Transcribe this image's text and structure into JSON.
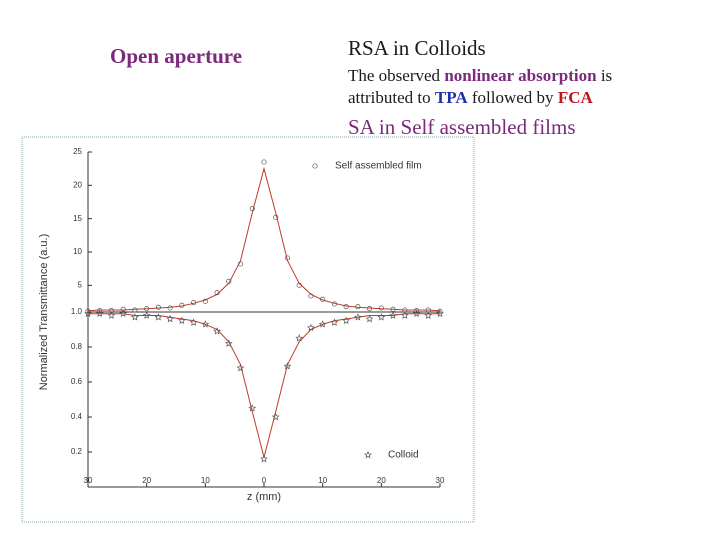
{
  "slide": {
    "left_heading": {
      "text": "Open aperture",
      "color": "#7b2a7b"
    },
    "right_heading": {
      "text": "RSA in Colloids",
      "color": "#1a1a1a"
    },
    "body": [
      {
        "text": "The observed ",
        "color": "#1a1a1a",
        "bold": false
      },
      {
        "text": "nonlinear absorption",
        "color": "#7b2a7b",
        "bold": true
      },
      {
        "text": " is attributed to ",
        "color": "#1a1a1a",
        "bold": false
      },
      {
        "text": "TPA",
        "color": "#1f2fa8",
        "bold": true
      },
      {
        "text": " followed by ",
        "color": "#1a1a1a",
        "bold": false
      },
      {
        "text": "FCA",
        "color": "#c0141e",
        "bold": true
      }
    ],
    "subheading": {
      "text": "SA in Self assembled films",
      "color": "#7b2a7b"
    }
  },
  "chart_data": {
    "type": "scatter",
    "x_label": "z (mm)",
    "y_label": "Normalized Transmittance (a.u.)",
    "x": [
      -30,
      -28,
      -26,
      -24,
      -22,
      -20,
      -18,
      -16,
      -14,
      -12,
      -10,
      -8,
      -6,
      -4,
      -2,
      0,
      2,
      4,
      6,
      8,
      10,
      12,
      14,
      16,
      18,
      20,
      22,
      24,
      26,
      28,
      30
    ],
    "xlim": [
      -30,
      30
    ],
    "xticks": [
      {
        "value": -30,
        "label": "30"
      },
      {
        "value": -20,
        "label": "20"
      },
      {
        "value": -10,
        "label": "10"
      },
      0,
      10,
      20,
      30
    ],
    "panels": [
      {
        "ylim": [
          1,
          25
        ],
        "yticks": [
          {
            "value": 1,
            "label": "1.0"
          },
          5,
          10,
          15,
          20,
          25
        ],
        "legend": "upper right",
        "series": [
          {
            "name": "Self assembled film",
            "marker": "circle",
            "color": "#555555",
            "fit_color": "#c0392b",
            "values": [
              1.1,
              1.2,
              1.2,
              1.4,
              1.3,
              1.5,
              1.7,
              1.6,
              2.0,
              2.4,
              2.6,
              3.9,
              5.6,
              8.2,
              16.5,
              23.5,
              15.2,
              9.1,
              5.0,
              3.4,
              2.9,
              2.2,
              1.8,
              1.8,
              1.5,
              1.6,
              1.4,
              1.3,
              1.2,
              1.3,
              1.1
            ],
            "fit": [
              1.2,
              1.3,
              1.3,
              1.3,
              1.4,
              1.5,
              1.6,
              1.7,
              1.9,
              2.3,
              2.8,
              3.65,
              5.3,
              8.7,
              15.9,
              22.5,
              15.9,
              8.7,
              5.3,
              3.65,
              2.8,
              2.3,
              1.9,
              1.7,
              1.6,
              1.5,
              1.4,
              1.3,
              1.3,
              1.3,
              1.2
            ]
          }
        ]
      },
      {
        "ylim": [
          0,
          1
        ],
        "yticks": [
          0.2,
          0.4,
          0.6,
          0.8
        ],
        "legend": "lower right",
        "series": [
          {
            "name": "Colloid",
            "marker": "star",
            "color": "#555555",
            "fit_color": "#c0392b",
            "values": [
              0.99,
              0.99,
              0.98,
              0.99,
              0.97,
              0.98,
              0.97,
              0.96,
              0.95,
              0.94,
              0.93,
              0.89,
              0.82,
              0.68,
              0.45,
              0.16,
              0.4,
              0.69,
              0.85,
              0.91,
              0.93,
              0.94,
              0.95,
              0.97,
              0.96,
              0.97,
              0.98,
              0.98,
              0.99,
              0.98,
              0.99
            ],
            "fit": [
              0.99,
              0.99,
              0.99,
              0.99,
              0.98,
              0.98,
              0.98,
              0.97,
              0.96,
              0.95,
              0.93,
              0.9,
              0.83,
              0.7,
              0.43,
              0.17,
              0.43,
              0.7,
              0.83,
              0.9,
              0.93,
              0.95,
              0.96,
              0.97,
              0.98,
              0.98,
              0.98,
              0.99,
              0.99,
              0.99,
              0.99
            ]
          }
        ]
      }
    ]
  }
}
